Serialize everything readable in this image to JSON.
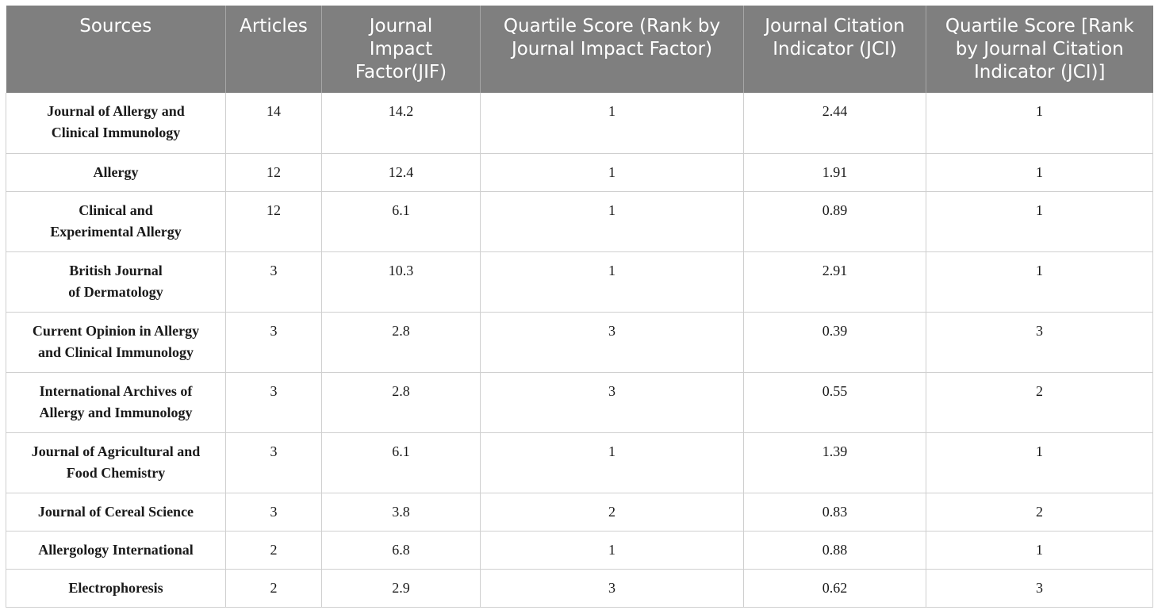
{
  "table": {
    "headers": [
      "Sources",
      "Articles",
      "Journal\nImpact\nFactor(JIF)",
      "Quartile Score (Rank by\nJournal Impact Factor)",
      "Journal Citation\nIndicator (JCI)",
      "Quartile Score [Rank\nby Journal Citation\nIndicator (JCI)]"
    ],
    "rows": [
      {
        "source": "Journal of Allergy and\nClinical Immunology",
        "articles": "14",
        "jif": "14.2",
        "jif_quartile": "1",
        "jci": "2.44",
        "jci_quartile": "1"
      },
      {
        "source": "Allergy",
        "articles": "12",
        "jif": "12.4",
        "jif_quartile": "1",
        "jci": "1.91",
        "jci_quartile": "1"
      },
      {
        "source": "Clinical and\nExperimental Allergy",
        "articles": "12",
        "jif": "6.1",
        "jif_quartile": "1",
        "jci": "0.89",
        "jci_quartile": "1"
      },
      {
        "source": "British Journal\nof Dermatology",
        "articles": "3",
        "jif": "10.3",
        "jif_quartile": "1",
        "jci": "2.91",
        "jci_quartile": "1"
      },
      {
        "source": "Current Opinion in Allergy\nand Clinical Immunology",
        "articles": "3",
        "jif": "2.8",
        "jif_quartile": "3",
        "jci": "0.39",
        "jci_quartile": "3"
      },
      {
        "source": "International Archives of\nAllergy and Immunology",
        "articles": "3",
        "jif": "2.8",
        "jif_quartile": "3",
        "jci": "0.55",
        "jci_quartile": "2"
      },
      {
        "source": "Journal of Agricultural and\nFood Chemistry",
        "articles": "3",
        "jif": "6.1",
        "jif_quartile": "1",
        "jci": "1.39",
        "jci_quartile": "1"
      },
      {
        "source": "Journal of Cereal Science",
        "articles": "3",
        "jif": "3.8",
        "jif_quartile": "2",
        "jci": "0.83",
        "jci_quartile": "2"
      },
      {
        "source": "Allergology International",
        "articles": "2",
        "jif": "6.8",
        "jif_quartile": "1",
        "jci": "0.88",
        "jci_quartile": "1"
      },
      {
        "source": "Electrophoresis",
        "articles": "2",
        "jif": "2.9",
        "jif_quartile": "3",
        "jci": "0.62",
        "jci_quartile": "3"
      }
    ]
  },
  "colors": {
    "header_bg": "#7f7f7f",
    "header_text": "#ffffff",
    "grid_line": "#cfcfcf"
  }
}
